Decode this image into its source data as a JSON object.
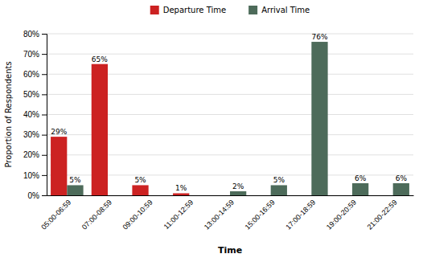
{
  "chart_data": {
    "type": "bar",
    "categories": [
      "05:00-06:59",
      "07:00-08:59",
      "09:00-10:59",
      "11:00-12:59",
      "13:00-14:59",
      "15:00-16:59",
      "17:00-18:59",
      "19:00-20:59",
      "21:00-22:59"
    ],
    "series": [
      {
        "name": "Departure Time",
        "color": "#CC2222",
        "values": [
          29,
          65,
          5,
          1,
          0,
          0,
          0,
          0,
          0
        ],
        "value_labels": [
          "29%",
          "65%",
          "5%",
          "1%",
          null,
          null,
          null,
          null,
          null
        ]
      },
      {
        "name": "Arrival Time",
        "color": "#4D6B5A",
        "values": [
          5,
          0,
          0,
          0,
          2,
          5,
          76,
          6,
          6
        ],
        "value_labels": [
          "5%",
          null,
          null,
          null,
          "2%",
          "5%",
          "76%",
          "6%",
          "6%"
        ]
      }
    ],
    "xlabel": "Time",
    "ylabel": "Proportion of Respondents",
    "ylim": [
      0,
      80
    ],
    "yticks": [
      {
        "value": 0,
        "label": "0%"
      },
      {
        "value": 10,
        "label": "10%"
      },
      {
        "value": 20,
        "label": "20%"
      },
      {
        "value": 30,
        "label": "30%"
      },
      {
        "value": 40,
        "label": "40%"
      },
      {
        "value": 50,
        "label": "50%"
      },
      {
        "value": 60,
        "label": "60%"
      },
      {
        "value": 70,
        "label": "70%"
      },
      {
        "value": 80,
        "label": "80%"
      }
    ],
    "grid": true,
    "legend": "top",
    "data_labels": true
  }
}
